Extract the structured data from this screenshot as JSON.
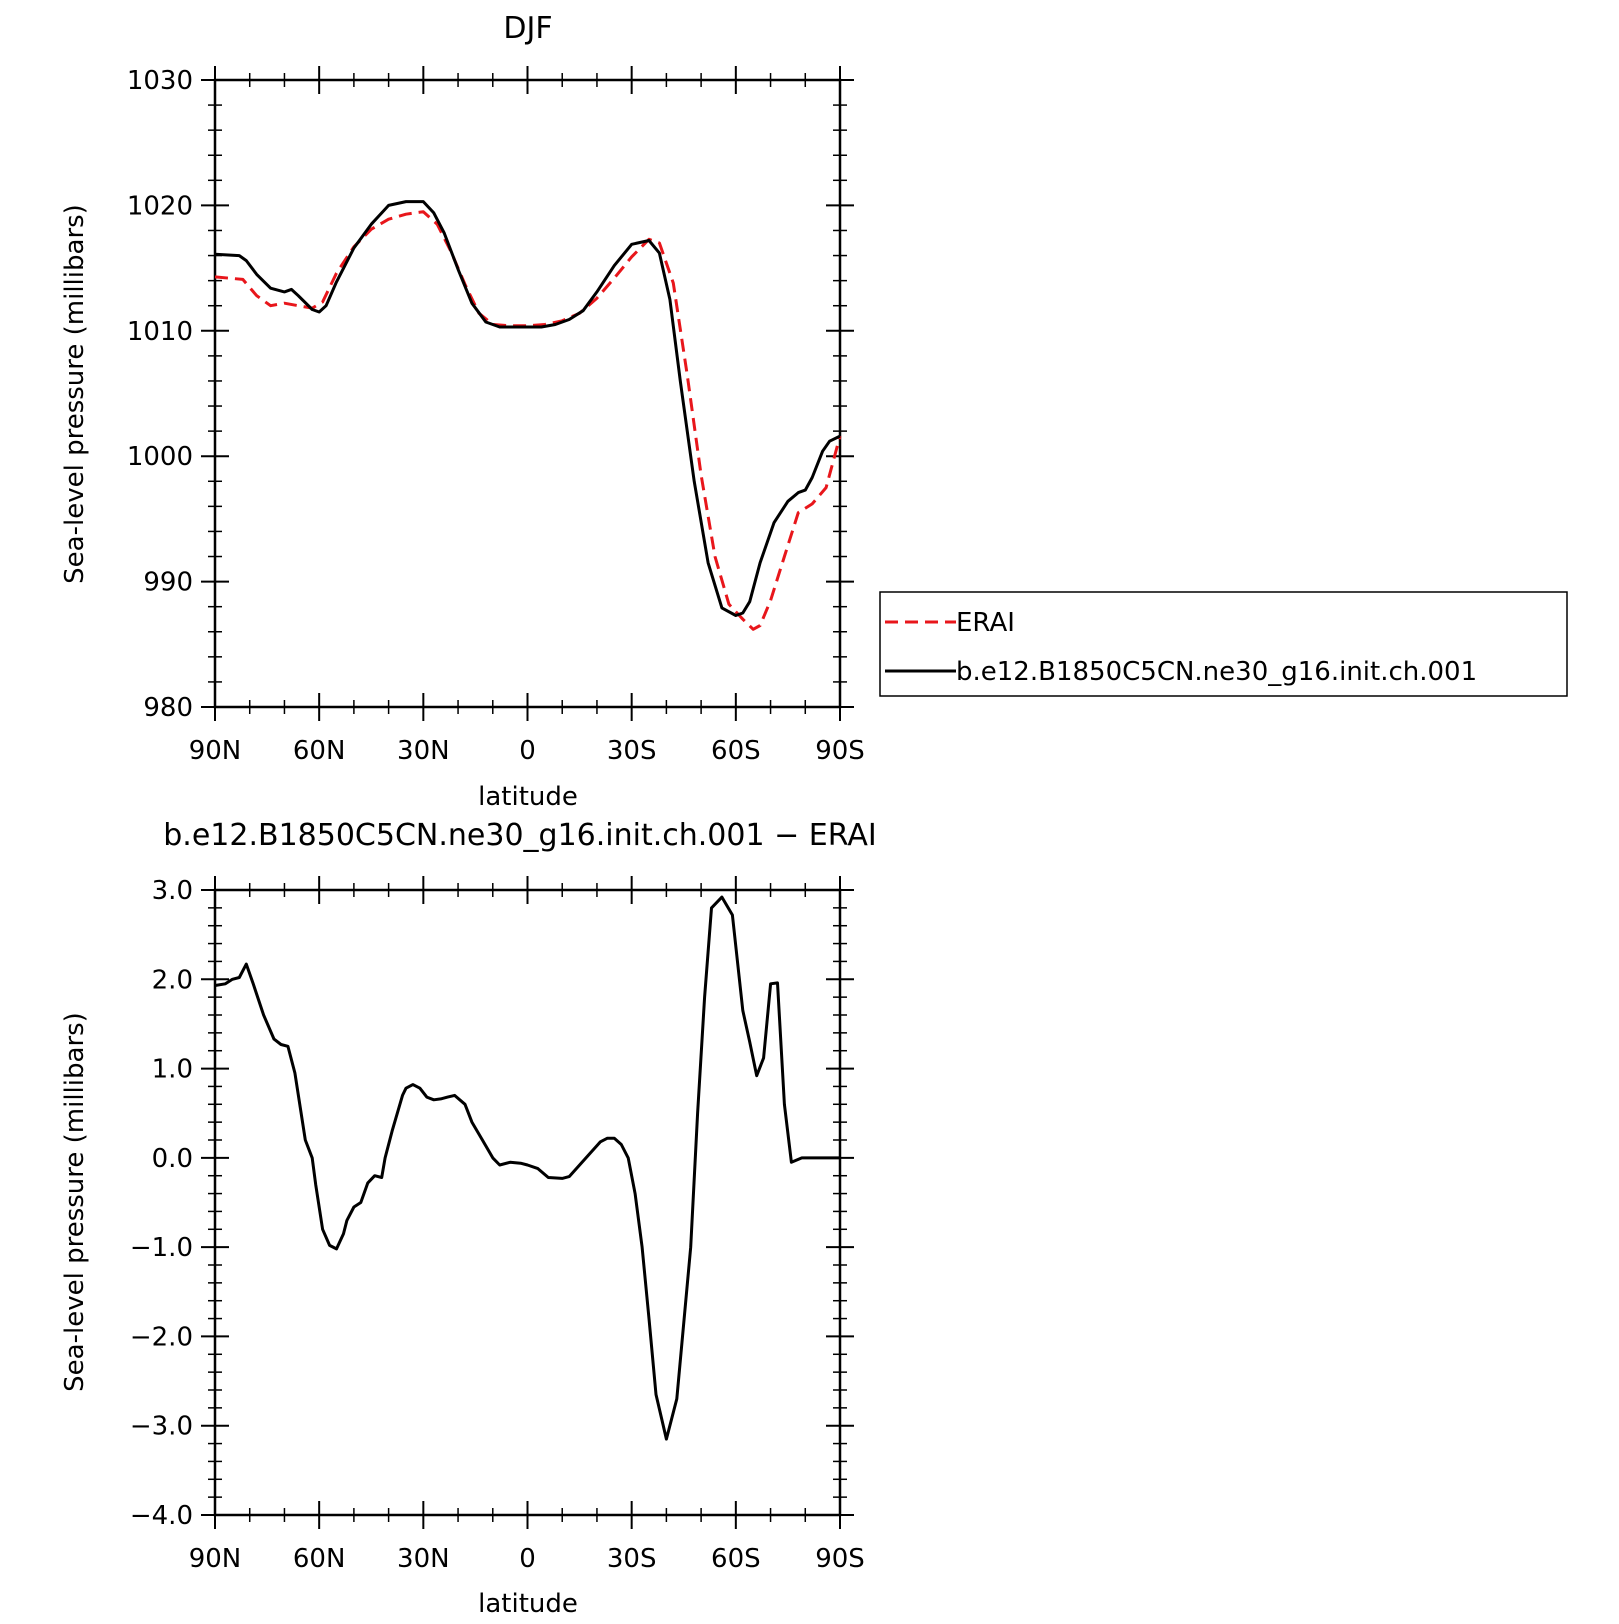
{
  "chart_data": [
    {
      "type": "line",
      "title": "DJF",
      "xlabel": "latitude",
      "ylabel": "Sea-level pressure (millibars)",
      "xlim": [
        90,
        -90
      ],
      "ylim": [
        980,
        1030
      ],
      "x_ticks": [
        90,
        60,
        30,
        0,
        -30,
        -60,
        -90
      ],
      "x_tick_labels": [
        "90N",
        "60N",
        "30N",
        "0",
        "30S",
        "60S",
        "90S"
      ],
      "y_ticks": [
        980,
        990,
        1000,
        1010,
        1020,
        1030
      ],
      "y_tick_labels": [
        "980",
        "990",
        "1000",
        "1010",
        "1020",
        "1030"
      ],
      "legend_position": "right",
      "series": [
        {
          "name": "ERAI",
          "color": "#e8161b",
          "dash": true,
          "x": [
            90,
            82,
            78,
            74,
            70,
            66,
            62,
            59,
            55,
            50,
            45,
            40,
            35,
            30,
            26,
            22,
            18,
            14,
            10,
            5,
            0,
            -5,
            -10,
            -15,
            -20,
            -25,
            -30,
            -35,
            -38,
            -42,
            -46,
            -50,
            -54,
            -58,
            -62,
            -65,
            -67,
            -70,
            -74,
            -78,
            -82,
            -86,
            -90
          ],
          "values": [
            1014.3,
            1014.1,
            1012.8,
            1012.0,
            1012.2,
            1012.0,
            1011.8,
            1012.3,
            1014.6,
            1016.7,
            1018.1,
            1018.9,
            1019.3,
            1019.5,
            1018.5,
            1016.3,
            1013.7,
            1011.4,
            1010.5,
            1010.4,
            1010.4,
            1010.5,
            1010.8,
            1011.4,
            1012.6,
            1014.2,
            1015.9,
            1017.3,
            1017.0,
            1013.8,
            1006.5,
            998.5,
            992.0,
            988.2,
            987.0,
            986.2,
            986.5,
            988.5,
            992.0,
            995.5,
            996.2,
            997.5,
            1001.6
          ]
        },
        {
          "name": "b.e12.B1850C5CN.ne30_g16.init.ch.001",
          "color": "#000000",
          "dash": false,
          "x": [
            90,
            83,
            81,
            78,
            74,
            70,
            68,
            66,
            62,
            60,
            58,
            55,
            50,
            45,
            40,
            35,
            30,
            27,
            24,
            20,
            16,
            12,
            8,
            4,
            0,
            -4,
            -8,
            -12,
            -16,
            -20,
            -25,
            -30,
            -35,
            -38,
            -41,
            -44,
            -48,
            -52,
            -56,
            -60,
            -62,
            -64,
            -67,
            -71,
            -75,
            -78,
            -80,
            -82,
            -85,
            -87,
            -90
          ],
          "values": [
            1016.1,
            1016.0,
            1015.6,
            1014.5,
            1013.4,
            1013.1,
            1013.3,
            1012.8,
            1011.7,
            1011.5,
            1012.0,
            1013.9,
            1016.6,
            1018.5,
            1020.0,
            1020.3,
            1020.3,
            1019.4,
            1017.8,
            1014.9,
            1012.2,
            1010.7,
            1010.3,
            1010.3,
            1010.3,
            1010.3,
            1010.5,
            1010.9,
            1011.6,
            1013.1,
            1015.2,
            1016.9,
            1017.2,
            1016.2,
            1012.5,
            1006.0,
            998.0,
            991.5,
            987.9,
            987.3,
            987.5,
            988.4,
            991.5,
            994.7,
            996.4,
            997.1,
            997.3,
            998.3,
            1000.4,
            1001.2,
            1001.6
          ]
        }
      ]
    },
    {
      "type": "line",
      "title": "b.e12.B1850C5CN.ne30_g16.init.ch.001 − ERAI",
      "xlabel": "latitude",
      "ylabel": "Sea-level pressure (millibars)",
      "xlim": [
        90,
        -90
      ],
      "ylim": [
        -4.0,
        3.0
      ],
      "x_ticks": [
        90,
        60,
        30,
        0,
        -30,
        -60,
        -90
      ],
      "x_tick_labels": [
        "90N",
        "60N",
        "30N",
        "0",
        "30S",
        "60S",
        "90S"
      ],
      "y_ticks": [
        -4,
        -3,
        -2,
        -1,
        0,
        1,
        2,
        3
      ],
      "y_tick_labels": [
        "−4.0",
        "−3.0",
        "−2.0",
        "−1.0",
        "0.0",
        "1.0",
        "2.0",
        "3.0"
      ],
      "series": [
        {
          "name": "",
          "color": "#000000",
          "dash": false,
          "x": [
            90,
            87,
            85,
            83,
            81,
            79,
            76,
            73,
            71,
            69,
            67,
            64,
            62,
            61,
            59,
            57,
            55,
            53,
            52,
            50,
            48,
            46,
            44,
            42,
            41,
            39,
            36,
            35,
            33,
            31,
            29,
            27,
            25,
            23,
            21,
            18,
            16,
            13,
            10,
            8,
            5,
            2,
            0,
            -3,
            -6,
            -10,
            -12,
            -15,
            -18,
            -21,
            -23,
            -25,
            -27,
            -29,
            -31,
            -33,
            -35,
            -37,
            -40,
            -43,
            -47,
            -49,
            -51,
            -53,
            -56,
            -59,
            -62,
            -64,
            -66,
            -68,
            -70,
            -72,
            -74,
            -76,
            -79,
            -81,
            -83,
            -85,
            -86,
            -88,
            -90
          ],
          "values": [
            1.93,
            1.95,
            2.0,
            2.02,
            2.17,
            1.95,
            1.6,
            1.33,
            1.27,
            1.25,
            0.95,
            0.2,
            0.0,
            -0.3,
            -0.8,
            -0.98,
            -1.02,
            -0.85,
            -0.7,
            -0.55,
            -0.5,
            -0.28,
            -0.2,
            -0.22,
            0.0,
            0.3,
            0.7,
            0.78,
            0.82,
            0.78,
            0.68,
            0.65,
            0.66,
            0.68,
            0.7,
            0.6,
            0.4,
            0.2,
            0.0,
            -0.08,
            -0.05,
            -0.06,
            -0.08,
            -0.12,
            -0.22,
            -0.23,
            -0.21,
            -0.08,
            0.05,
            0.18,
            0.22,
            0.22,
            0.15,
            0.0,
            -0.4,
            -1.0,
            -1.8,
            -2.65,
            -3.15,
            -2.7,
            -1.0,
            0.5,
            1.8,
            2.8,
            2.92,
            2.72,
            1.65,
            1.3,
            0.92,
            1.12,
            1.95,
            1.96,
            0.6,
            -0.05,
            0,
            0,
            0,
            0,
            0,
            0,
            0
          ]
        }
      ]
    }
  ]
}
